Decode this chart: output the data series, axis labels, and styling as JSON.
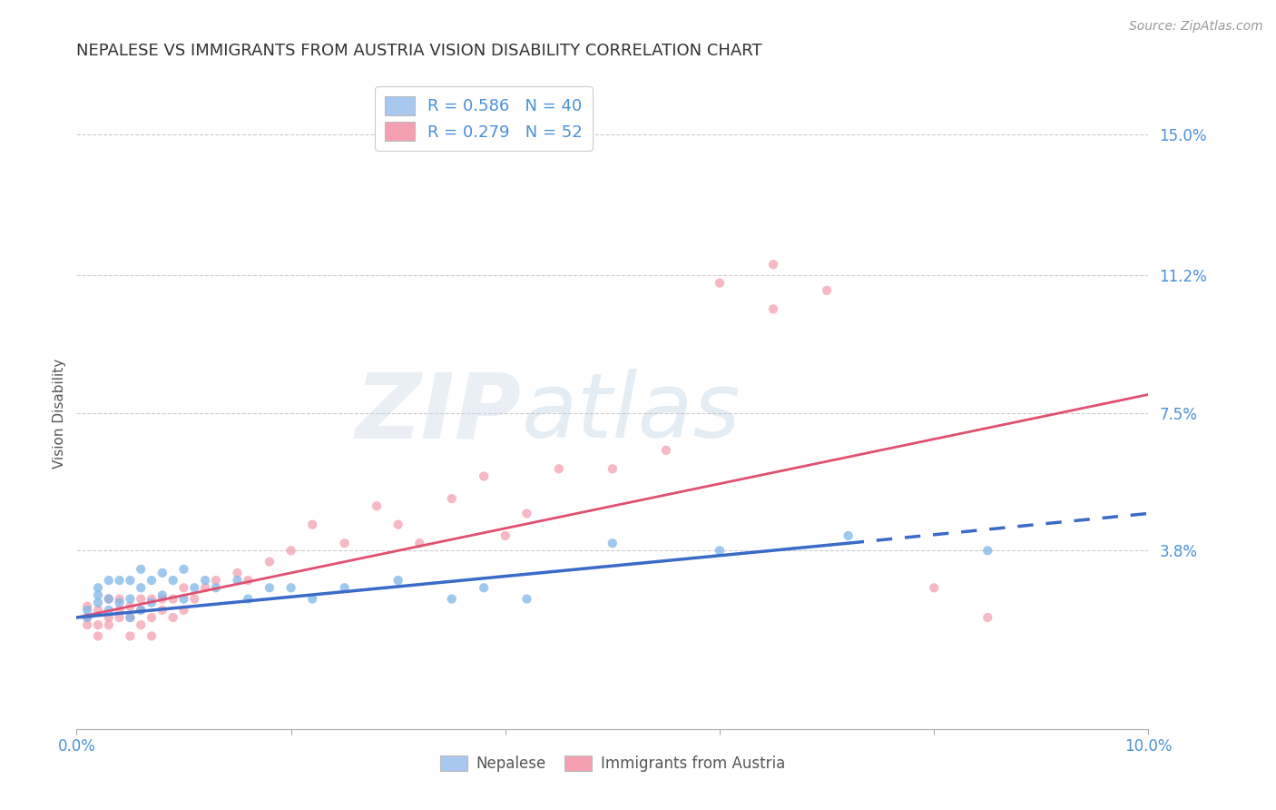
{
  "title": "NEPALESE VS IMMIGRANTS FROM AUSTRIA VISION DISABILITY CORRELATION CHART",
  "source_text": "Source: ZipAtlas.com",
  "ylabel": "Vision Disability",
  "xlim": [
    0.0,
    0.1
  ],
  "ylim": [
    -0.01,
    0.16
  ],
  "yticks": [
    0.038,
    0.075,
    0.112,
    0.15
  ],
  "ytick_labels": [
    "3.8%",
    "7.5%",
    "11.2%",
    "15.0%"
  ],
  "xticks": [
    0.0,
    0.02,
    0.04,
    0.06,
    0.08,
    0.1
  ],
  "xtick_labels": [
    "0.0%",
    "",
    "",
    "",
    "",
    "10.0%"
  ],
  "legend_entries": [
    {
      "label": "R = 0.586   N = 40",
      "color": "#A8C8F0"
    },
    {
      "label": "R = 0.279   N = 52",
      "color": "#F4A0B0"
    }
  ],
  "nepalese_scatter": {
    "x": [
      0.001,
      0.001,
      0.002,
      0.002,
      0.002,
      0.003,
      0.003,
      0.003,
      0.004,
      0.004,
      0.005,
      0.005,
      0.005,
      0.006,
      0.006,
      0.006,
      0.007,
      0.007,
      0.008,
      0.008,
      0.009,
      0.01,
      0.01,
      0.011,
      0.012,
      0.013,
      0.015,
      0.016,
      0.018,
      0.02,
      0.022,
      0.025,
      0.03,
      0.035,
      0.038,
      0.042,
      0.05,
      0.06,
      0.072,
      0.085
    ],
    "y": [
      0.02,
      0.022,
      0.024,
      0.026,
      0.028,
      0.022,
      0.025,
      0.03,
      0.024,
      0.03,
      0.02,
      0.025,
      0.03,
      0.022,
      0.028,
      0.033,
      0.024,
      0.03,
      0.026,
      0.032,
      0.03,
      0.025,
      0.033,
      0.028,
      0.03,
      0.028,
      0.03,
      0.025,
      0.028,
      0.028,
      0.025,
      0.028,
      0.03,
      0.025,
      0.028,
      0.025,
      0.04,
      0.038,
      0.042,
      0.038
    ],
    "color": "#7EB6E8",
    "alpha": 0.75,
    "size": 55
  },
  "austria_scatter": {
    "x": [
      0.001,
      0.001,
      0.001,
      0.002,
      0.002,
      0.002,
      0.003,
      0.003,
      0.003,
      0.004,
      0.004,
      0.004,
      0.005,
      0.005,
      0.005,
      0.006,
      0.006,
      0.006,
      0.007,
      0.007,
      0.007,
      0.008,
      0.008,
      0.009,
      0.009,
      0.01,
      0.01,
      0.011,
      0.012,
      0.013,
      0.015,
      0.016,
      0.018,
      0.02,
      0.022,
      0.025,
      0.028,
      0.03,
      0.032,
      0.035,
      0.038,
      0.04,
      0.042,
      0.045,
      0.05,
      0.055,
      0.06,
      0.065,
      0.065,
      0.07,
      0.08,
      0.085
    ],
    "y": [
      0.02,
      0.023,
      0.018,
      0.015,
      0.018,
      0.022,
      0.018,
      0.02,
      0.025,
      0.02,
      0.022,
      0.025,
      0.015,
      0.02,
      0.023,
      0.018,
      0.022,
      0.025,
      0.015,
      0.02,
      0.025,
      0.022,
      0.025,
      0.02,
      0.025,
      0.022,
      0.028,
      0.025,
      0.028,
      0.03,
      0.032,
      0.03,
      0.035,
      0.038,
      0.045,
      0.04,
      0.05,
      0.045,
      0.04,
      0.052,
      0.058,
      0.042,
      0.048,
      0.06,
      0.06,
      0.065,
      0.11,
      0.103,
      0.115,
      0.108,
      0.028,
      0.02
    ],
    "color": "#F4A0B0",
    "alpha": 0.75,
    "size": 55
  },
  "blue_line": {
    "x_start": 0.0,
    "x_solid_end": 0.072,
    "x_end": 0.1,
    "y_start": 0.02,
    "y_solid_end": 0.04,
    "y_end": 0.048,
    "color": "#3A6BC8",
    "linewidth": 2.5
  },
  "pink_line": {
    "x_start": 0.0,
    "x_end": 0.1,
    "y_start": 0.02,
    "y_end": 0.08,
    "color": "#E05070",
    "linewidth": 2.0
  },
  "watermark_zip": "ZIP",
  "watermark_atlas": "atlas",
  "background_color": "#FFFFFF",
  "grid_color": "#CCCCCC",
  "tick_color": "#4A90D9",
  "title_fontsize": 13,
  "axis_label_fontsize": 11
}
